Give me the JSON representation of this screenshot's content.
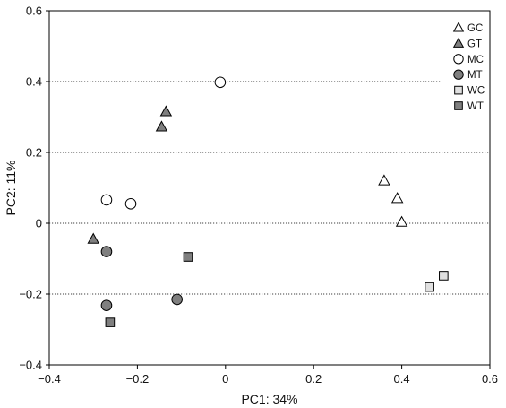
{
  "chart_data": {
    "type": "scatter",
    "xlabel": "PC1: 34%",
    "ylabel": "PC2: 11%",
    "xlim": [
      -0.4,
      0.6
    ],
    "ylim": [
      -0.4,
      0.6
    ],
    "x_ticks": [
      -0.4,
      -0.2,
      0,
      0.2,
      0.4,
      0.6
    ],
    "x_tick_labels": [
      "−0.4",
      "−0.2",
      "0",
      "0.2",
      "0.4",
      "0.6"
    ],
    "y_ticks": [
      -0.4,
      -0.2,
      0,
      0.2,
      0.4,
      0.6
    ],
    "y_tick_labels": [
      "−0.4",
      "−0.2",
      "0",
      "0.2",
      "0.4",
      "0.6"
    ],
    "grid": "horizontal dotted lines at y = 0.4, 0.2, 0, -0.2",
    "legend_position": "top-right",
    "series": [
      {
        "name": "GC",
        "marker": "triangle",
        "color": "#ffffff",
        "points": [
          [
            0.36,
            0.12
          ],
          [
            0.39,
            0.07
          ],
          [
            0.4,
            0.003
          ]
        ]
      },
      {
        "name": "GT",
        "marker": "triangle",
        "color": "#7f7f7f",
        "points": [
          [
            -0.135,
            0.315
          ],
          [
            -0.145,
            0.272
          ],
          [
            -0.3,
            -0.045
          ]
        ]
      },
      {
        "name": "MC",
        "marker": "circle",
        "color": "#ffffff",
        "points": [
          [
            -0.012,
            0.398
          ],
          [
            -0.27,
            0.066
          ],
          [
            -0.215,
            0.055
          ]
        ]
      },
      {
        "name": "MT",
        "marker": "circle",
        "color": "#7f7f7f",
        "points": [
          [
            -0.27,
            -0.08
          ],
          [
            -0.27,
            -0.232
          ],
          [
            -0.11,
            -0.215
          ]
        ]
      },
      {
        "name": "WC",
        "marker": "square",
        "color": "#e0e0e0",
        "points": [
          [
            0.463,
            -0.18
          ],
          [
            0.495,
            -0.148
          ]
        ]
      },
      {
        "name": "WT",
        "marker": "square",
        "color": "#7f7f7f",
        "points": [
          [
            -0.085,
            -0.095
          ],
          [
            -0.262,
            -0.28
          ]
        ]
      }
    ]
  }
}
